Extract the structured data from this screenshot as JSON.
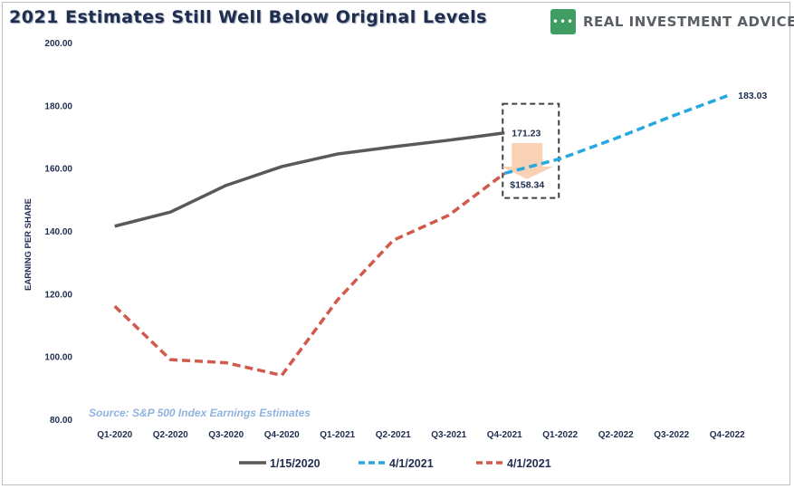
{
  "header": {
    "title": "2021 Estimates Still Well Below Original Levels",
    "brand": "REAL INVESTMENT ADVICE",
    "logo_icon": "chat-bubble-icon"
  },
  "source_note": "Source: S&P 500 Index Earnings Estimates",
  "colors": {
    "series_1": "#595959",
    "series_2": "#27a8e0",
    "series_3": "#d15a4c",
    "arrow": "#f8c9a8",
    "axis_text": "#1f2d4e"
  },
  "chart_data": {
    "type": "line",
    "title": "2021 Estimates Still Well Below Original Levels",
    "ylabel": "EARNING PER SHARE",
    "xlabel": "",
    "ylim": [
      80,
      200
    ],
    "yticks": [
      "200.00",
      "180.00",
      "160.00",
      "140.00",
      "120.00",
      "100.00",
      "80.00"
    ],
    "ytick_values": [
      200,
      180,
      160,
      140,
      120,
      100,
      80
    ],
    "categories": [
      "Q1-2020",
      "Q2-2020",
      "Q3-2020",
      "Q4-2020",
      "Q1-2021",
      "Q2-2021",
      "Q3-2021",
      "Q4-2021",
      "Q1-2022",
      "Q2-2022",
      "Q3-2022",
      "Q4-2022"
    ],
    "grid": false,
    "legend_position": "bottom",
    "series": [
      {
        "name": "1/15/2020",
        "style": "solid",
        "values": [
          141.5,
          146,
          154.5,
          160.5,
          164.5,
          166.8,
          168.9,
          171.23,
          null,
          null,
          null,
          null
        ]
      },
      {
        "name": "4/1/2021",
        "style": "dashed",
        "values": [
          null,
          null,
          null,
          null,
          null,
          null,
          null,
          158.34,
          163,
          169.5,
          176.5,
          183.03
        ]
      },
      {
        "name": "4/1/2021",
        "style": "dashed",
        "values": [
          116,
          99,
          98,
          94,
          118,
          137,
          145,
          158.34,
          null,
          null,
          null,
          null
        ]
      }
    ],
    "annotations": [
      {
        "text": "171.23",
        "x": "Q4-2021",
        "y": 171.23
      },
      {
        "text": "$158.34",
        "x": "Q4-2021",
        "y": 158.34
      },
      {
        "text": "183.03",
        "x": "Q4-2022",
        "y": 183.03
      }
    ]
  }
}
